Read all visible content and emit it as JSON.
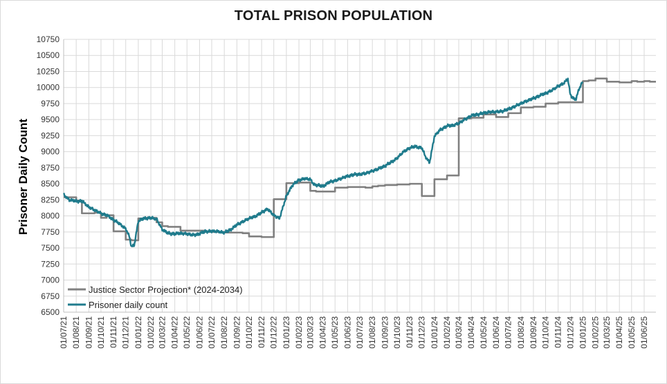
{
  "chart_data": {
    "type": "line",
    "title": "TOTAL PRISON POPULATION",
    "ylabel": "Prisoner Daily Count",
    "ylim": [
      6500,
      10750
    ],
    "y_ticks": [
      "6500",
      "6750",
      "7000",
      "7250",
      "7500",
      "7750",
      "8000",
      "8250",
      "8500",
      "8750",
      "9000",
      "9250",
      "9500",
      "9750",
      "10000",
      "10250",
      "10500",
      "10750"
    ],
    "x_ticks": [
      "01/07/21",
      "01/08/21",
      "01/09/21",
      "01/10/21",
      "01/11/21",
      "01/12/21",
      "01/01/22",
      "01/02/22",
      "01/03/22",
      "01/04/22",
      "01/05/22",
      "01/06/22",
      "01/07/22",
      "01/08/22",
      "01/09/22",
      "01/10/22",
      "01/11/22",
      "01/12/22",
      "01/01/23",
      "01/02/23",
      "01/03/23",
      "01/04/23",
      "01/05/23",
      "01/06/23",
      "01/07/23",
      "01/08/23",
      "01/09/23",
      "01/10/23",
      "01/11/23",
      "01/12/23",
      "01/01/24",
      "01/02/24",
      "01/03/24",
      "01/04/24",
      "01/05/24",
      "01/06/24",
      "01/07/24",
      "01/08/24",
      "01/09/24",
      "01/10/24",
      "01/11/24",
      "01/12/24",
      "01/01/25",
      "01/02/25",
      "01/03/25",
      "01/04/25",
      "01/05/25",
      "01/06/25"
    ],
    "grid": true,
    "legend_position": "bottom-left",
    "series": [
      {
        "name": "Justice Sector Projection* (2024-2034)",
        "color": "#808080",
        "style": "step",
        "points": [
          [
            "01/07/21",
            8290
          ],
          [
            "01/08/21",
            8240
          ],
          [
            "15/08/21",
            8040
          ],
          [
            "15/09/21",
            8050
          ],
          [
            "01/10/21",
            7970
          ],
          [
            "15/10/21",
            8010
          ],
          [
            "01/11/21",
            7760
          ],
          [
            "01/12/21",
            7630
          ],
          [
            "15/12/21",
            7620
          ],
          [
            "01/01/22",
            7960
          ],
          [
            "15/01/22",
            7970
          ],
          [
            "15/02/22",
            7900
          ],
          [
            "01/03/22",
            7840
          ],
          [
            "15/03/22",
            7830
          ],
          [
            "15/04/22",
            7770
          ],
          [
            "01/06/22",
            7770
          ],
          [
            "15/06/22",
            7750
          ],
          [
            "01/08/22",
            7740
          ],
          [
            "15/08/22",
            7740
          ],
          [
            "15/09/22",
            7730
          ],
          [
            "01/10/22",
            7680
          ],
          [
            "01/11/22",
            7670
          ],
          [
            "01/12/22",
            8260
          ],
          [
            "01/01/23",
            8510
          ],
          [
            "01/02/23",
            8520
          ],
          [
            "01/03/23",
            8390
          ],
          [
            "15/03/23",
            8380
          ],
          [
            "01/04/23",
            8380
          ],
          [
            "01/05/23",
            8440
          ],
          [
            "01/06/23",
            8450
          ],
          [
            "15/07/23",
            8440
          ],
          [
            "01/08/23",
            8460
          ],
          [
            "15/08/23",
            8470
          ],
          [
            "01/09/23",
            8480
          ],
          [
            "01/10/23",
            8490
          ],
          [
            "01/11/23",
            8500
          ],
          [
            "01/12/23",
            8310
          ],
          [
            "01/01/24",
            8570
          ],
          [
            "01/02/24",
            8630
          ],
          [
            "01/03/24",
            9520
          ],
          [
            "01/04/24",
            9530
          ],
          [
            "01/05/24",
            9580
          ],
          [
            "01/06/24",
            9540
          ],
          [
            "01/07/24",
            9600
          ],
          [
            "01/08/24",
            9690
          ],
          [
            "01/09/24",
            9700
          ],
          [
            "01/10/24",
            9750
          ],
          [
            "01/11/24",
            9770
          ],
          [
            "01/12/24",
            9770
          ],
          [
            "01/01/25",
            10100
          ],
          [
            "15/01/25",
            10110
          ],
          [
            "01/02/25",
            10140
          ],
          [
            "01/03/25",
            10090
          ],
          [
            "01/04/25",
            10080
          ],
          [
            "01/05/25",
            10100
          ],
          [
            "15/05/25",
            10090
          ],
          [
            "01/06/25",
            10100
          ],
          [
            "15/06/25",
            10090
          ],
          [
            "30/06/25",
            10090
          ]
        ]
      },
      {
        "name": "Prisoner daily count",
        "color": "#1f7b8c",
        "style": "line",
        "points": [
          [
            "01/07/21",
            8330
          ],
          [
            "15/07/21",
            8250
          ],
          [
            "01/08/21",
            8230
          ],
          [
            "15/08/21",
            8230
          ],
          [
            "01/09/21",
            8140
          ],
          [
            "15/09/21",
            8090
          ],
          [
            "01/10/21",
            8040
          ],
          [
            "15/10/21",
            8010
          ],
          [
            "01/11/21",
            7940
          ],
          [
            "15/11/21",
            7880
          ],
          [
            "01/12/21",
            7800
          ],
          [
            "10/12/21",
            7680
          ],
          [
            "15/12/21",
            7520
          ],
          [
            "22/12/21",
            7540
          ],
          [
            "01/01/22",
            7920
          ],
          [
            "15/01/22",
            7960
          ],
          [
            "01/02/22",
            7970
          ],
          [
            "15/02/22",
            7950
          ],
          [
            "01/03/22",
            7790
          ],
          [
            "15/03/22",
            7730
          ],
          [
            "01/04/22",
            7720
          ],
          [
            "15/04/22",
            7730
          ],
          [
            "01/05/22",
            7720
          ],
          [
            "15/05/22",
            7700
          ],
          [
            "01/06/22",
            7720
          ],
          [
            "15/06/22",
            7760
          ],
          [
            "01/07/22",
            7760
          ],
          [
            "15/07/22",
            7760
          ],
          [
            "01/08/22",
            7740
          ],
          [
            "15/08/22",
            7780
          ],
          [
            "01/09/22",
            7860
          ],
          [
            "15/09/22",
            7910
          ],
          [
            "01/10/22",
            7960
          ],
          [
            "15/10/22",
            7990
          ],
          [
            "01/11/22",
            8050
          ],
          [
            "15/11/22",
            8110
          ],
          [
            "01/12/22",
            8010
          ],
          [
            "15/12/22",
            7960
          ],
          [
            "01/01/23",
            8310
          ],
          [
            "15/01/23",
            8470
          ],
          [
            "01/02/23",
            8560
          ],
          [
            "15/02/23",
            8580
          ],
          [
            "01/03/23",
            8570
          ],
          [
            "10/03/23",
            8490
          ],
          [
            "01/04/23",
            8460
          ],
          [
            "15/04/23",
            8520
          ],
          [
            "01/05/23",
            8550
          ],
          [
            "15/05/23",
            8580
          ],
          [
            "01/06/23",
            8620
          ],
          [
            "15/06/23",
            8640
          ],
          [
            "01/07/23",
            8650
          ],
          [
            "15/07/23",
            8660
          ],
          [
            "01/08/23",
            8700
          ],
          [
            "15/08/23",
            8730
          ],
          [
            "01/09/23",
            8780
          ],
          [
            "15/09/23",
            8830
          ],
          [
            "01/10/23",
            8900
          ],
          [
            "15/10/23",
            8990
          ],
          [
            "01/11/23",
            9060
          ],
          [
            "15/11/23",
            9080
          ],
          [
            "01/12/23",
            9060
          ],
          [
            "10/12/23",
            8920
          ],
          [
            "20/12/23",
            8830
          ],
          [
            "01/01/24",
            9240
          ],
          [
            "15/01/24",
            9340
          ],
          [
            "01/02/24",
            9400
          ],
          [
            "15/02/24",
            9410
          ],
          [
            "01/03/24",
            9440
          ],
          [
            "15/03/24",
            9500
          ],
          [
            "01/04/24",
            9560
          ],
          [
            "15/04/24",
            9580
          ],
          [
            "01/05/24",
            9600
          ],
          [
            "15/05/24",
            9620
          ],
          [
            "01/06/24",
            9620
          ],
          [
            "15/06/24",
            9630
          ],
          [
            "01/07/24",
            9660
          ],
          [
            "15/07/24",
            9700
          ],
          [
            "01/08/24",
            9750
          ],
          [
            "15/08/24",
            9790
          ],
          [
            "01/09/24",
            9830
          ],
          [
            "15/09/24",
            9870
          ],
          [
            "01/10/24",
            9910
          ],
          [
            "15/10/24",
            9950
          ],
          [
            "01/11/24",
            10020
          ],
          [
            "15/11/24",
            10070
          ],
          [
            "25/11/24",
            10130
          ],
          [
            "01/12/24",
            9890
          ],
          [
            "10/12/24",
            9820
          ],
          [
            "15/12/24",
            9820
          ],
          [
            "22/12/24",
            9970
          ],
          [
            "31/12/24",
            10090
          ]
        ]
      }
    ]
  }
}
